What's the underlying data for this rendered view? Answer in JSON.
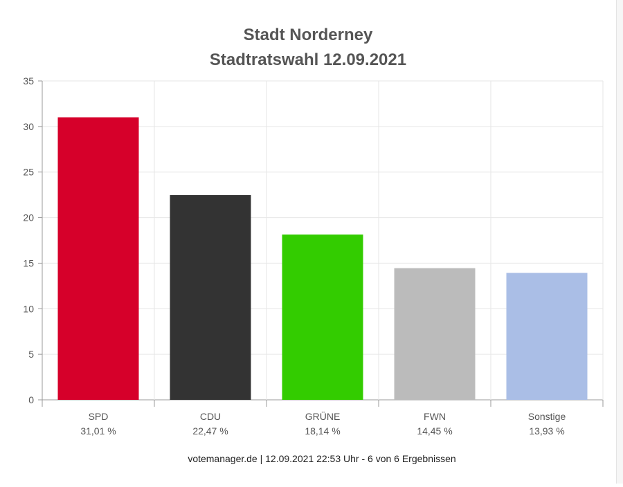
{
  "chart_data": {
    "type": "bar",
    "title": "Stadt Norderney",
    "subtitle": "Stadtratswahl 12.09.2021",
    "categories": [
      "SPD",
      "CDU",
      "GRÜNE",
      "FWN",
      "Sonstige"
    ],
    "values": [
      31.01,
      22.47,
      18.14,
      14.45,
      13.93
    ],
    "value_labels": [
      "31,01 %",
      "22,47 %",
      "18,14 %",
      "14,45 %",
      "13,93 %"
    ],
    "colors": [
      "#d6002a",
      "#333333",
      "#33cc00",
      "#bbbbbb",
      "#aabee6"
    ],
    "yticks": [
      "0",
      "5",
      "10",
      "15",
      "20",
      "25",
      "30",
      "35"
    ],
    "ylim": [
      0,
      35
    ],
    "grid": true,
    "footer": "votemanager.de | 12.09.2021 22:53 Uhr - 6 von 6 Ergebnissen"
  }
}
